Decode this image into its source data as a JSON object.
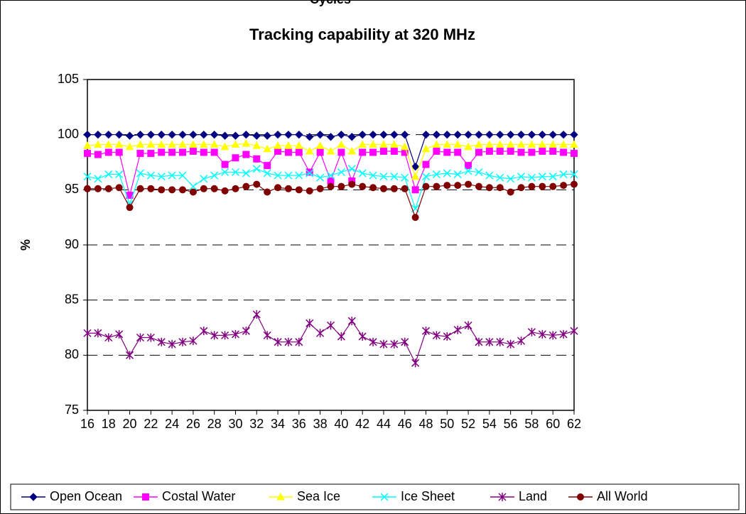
{
  "chart_data": {
    "type": "line",
    "title": "Tracking capability at 320 MHz",
    "xlabel": "Cycles",
    "ylabel": "%",
    "x": [
      16,
      17,
      18,
      19,
      20,
      21,
      22,
      23,
      24,
      25,
      26,
      27,
      28,
      29,
      30,
      31,
      32,
      33,
      34,
      35,
      36,
      37,
      38,
      39,
      40,
      41,
      42,
      43,
      44,
      45,
      46,
      47,
      48,
      49,
      50,
      51,
      52,
      53,
      54,
      55,
      56,
      57,
      58,
      59,
      60,
      61,
      62
    ],
    "xlim": [
      16,
      62
    ],
    "xticks": [
      16,
      18,
      20,
      22,
      24,
      26,
      28,
      30,
      32,
      34,
      36,
      38,
      40,
      42,
      44,
      46,
      48,
      50,
      52,
      54,
      56,
      58,
      60,
      62
    ],
    "ylim": [
      75,
      105
    ],
    "yticks": [
      75,
      80,
      85,
      90,
      95,
      100,
      105
    ],
    "grid": true,
    "legend": "bottom",
    "series": [
      {
        "name": "Open Ocean",
        "color": "#000080",
        "marker": "diamond",
        "values": [
          100,
          100,
          100,
          100,
          99.9,
          100,
          100,
          100,
          100,
          100,
          100,
          100,
          100,
          99.9,
          99.9,
          100,
          99.9,
          99.9,
          100,
          100,
          100,
          99.8,
          100,
          99.8,
          100,
          99.8,
          100,
          100,
          100,
          100,
          100,
          97.1,
          100,
          100,
          100,
          100,
          100,
          100,
          100,
          100,
          100,
          100,
          100,
          100,
          100,
          100,
          100
        ]
      },
      {
        "name": "Costal Water",
        "color": "#ff00ff",
        "marker": "square",
        "values": [
          98.3,
          98.2,
          98.4,
          98.4,
          94.5,
          98.3,
          98.3,
          98.4,
          98.4,
          98.4,
          98.5,
          98.4,
          98.4,
          97.3,
          97.9,
          98.2,
          97.8,
          97.2,
          98.5,
          98.4,
          98.4,
          96.6,
          98.4,
          95.8,
          98.4,
          95.8,
          98.4,
          98.4,
          98.5,
          98.5,
          98.4,
          95.0,
          97.3,
          98.5,
          98.4,
          98.4,
          97.2,
          98.4,
          98.5,
          98.5,
          98.5,
          98.4,
          98.4,
          98.5,
          98.5,
          98.4,
          98.3
        ]
      },
      {
        "name": "Sea Ice",
        "color": "#ffff00",
        "marker": "triangle",
        "values": [
          99,
          99.1,
          99.1,
          99.1,
          98.9,
          99.1,
          99.1,
          99.1,
          99.1,
          99.1,
          99.1,
          99.1,
          99.1,
          98.9,
          99.1,
          99.2,
          99,
          98.7,
          99,
          99,
          99,
          98.5,
          99,
          98.5,
          99.1,
          98.5,
          99.1,
          99.1,
          99.1,
          99.1,
          98.9,
          96.2,
          98.7,
          99.1,
          99.1,
          99.1,
          98.9,
          99.1,
          99.1,
          99.1,
          99.1,
          99.1,
          99.1,
          99.1,
          99.1,
          99.1,
          99.1
        ]
      },
      {
        "name": "Ice Sheet",
        "color": "#00ffff",
        "marker": "x",
        "values": [
          96.2,
          96,
          96.4,
          96.4,
          93.7,
          96.5,
          96.3,
          96.2,
          96.3,
          96.3,
          95.3,
          96,
          96.3,
          96.6,
          96.6,
          96.5,
          96.9,
          96.5,
          96.3,
          96.3,
          96.3,
          96.5,
          96.1,
          96.3,
          96.6,
          96.9,
          96.5,
          96.3,
          96.2,
          96.2,
          96.1,
          93.3,
          96.2,
          96.4,
          96.5,
          96.4,
          96.7,
          96.6,
          96.3,
          96.1,
          96,
          96.2,
          96.1,
          96.2,
          96.2,
          96.4,
          96.4
        ]
      },
      {
        "name": "Land",
        "color": "#800080",
        "marker": "asterisk",
        "values": [
          82,
          82,
          81.6,
          81.9,
          80,
          81.6,
          81.6,
          81.2,
          81,
          81.2,
          81.3,
          82.2,
          81.8,
          81.8,
          81.9,
          82.2,
          83.7,
          81.8,
          81.2,
          81.2,
          81.2,
          82.9,
          82,
          82.7,
          81.7,
          83.1,
          81.7,
          81.2,
          81,
          81,
          81.2,
          79.3,
          82.2,
          81.8,
          81.7,
          82.3,
          82.7,
          81.2,
          81.2,
          81.2,
          81,
          81.3,
          82.1,
          81.9,
          81.8,
          81.9,
          82.2
        ]
      },
      {
        "name": "All World",
        "color": "#800000",
        "marker": "circle",
        "values": [
          95.1,
          95.1,
          95.1,
          95.2,
          93.4,
          95.1,
          95.1,
          95,
          95,
          95,
          94.8,
          95.1,
          95.1,
          94.9,
          95.1,
          95.3,
          95.5,
          94.8,
          95.2,
          95.1,
          95,
          94.9,
          95.1,
          95.3,
          95.3,
          95.5,
          95.3,
          95.2,
          95.1,
          95.1,
          95.1,
          92.5,
          95.3,
          95.3,
          95.4,
          95.4,
          95.5,
          95.3,
          95.2,
          95.2,
          94.8,
          95.2,
          95.3,
          95.3,
          95.3,
          95.4,
          95.5
        ]
      }
    ]
  }
}
